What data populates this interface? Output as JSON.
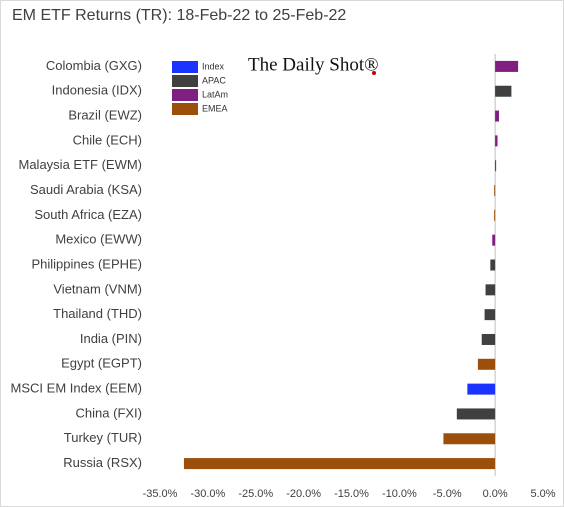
{
  "chart_data": {
    "type": "hbar",
    "title": "EM ETF Returns (TR): 18-Feb-22 to 25-Feb-22",
    "watermark": "The Daily Shot®",
    "categories": [
      "Colombia (GXG)",
      "Indonesia (IDX)",
      "Brazil (EWZ)",
      "Chile (ECH)",
      "Malaysia ETF (EWM)",
      "Saudi Arabia (KSA)",
      "South Africa (EZA)",
      "Mexico (EWW)",
      "Philippines (EPHE)",
      "Vietnam (VNM)",
      "Thailand (THD)",
      "India (PIN)",
      "Egypt (EGPT)",
      "MSCI EM Index (EEM)",
      "China (FXI)",
      "Turkey (TUR)",
      "Russia (RSX)"
    ],
    "series": [
      {
        "name": "Index",
        "color": "#1a33ff",
        "values": [
          null,
          null,
          null,
          null,
          null,
          null,
          null,
          null,
          null,
          null,
          null,
          null,
          null,
          -2.9,
          null,
          null,
          null
        ]
      },
      {
        "name": "APAC",
        "color": "#404040",
        "values": [
          null,
          1.7,
          null,
          null,
          0.1,
          null,
          null,
          null,
          -0.5,
          -1.0,
          -1.1,
          -1.4,
          null,
          null,
          -4.0,
          null,
          null
        ]
      },
      {
        "name": "LatAm",
        "color": "#7f1f7f",
        "values": [
          2.4,
          null,
          0.4,
          0.25,
          null,
          null,
          null,
          -0.3,
          null,
          null,
          null,
          null,
          null,
          null,
          null,
          null,
          null
        ]
      },
      {
        "name": "EMEA",
        "color": "#9c4f0b",
        "values": [
          null,
          null,
          null,
          null,
          null,
          -0.1,
          -0.1,
          null,
          null,
          null,
          null,
          null,
          -1.8,
          null,
          null,
          -5.4,
          -32.5
        ]
      }
    ],
    "xlim": [
      -35,
      5
    ],
    "xticks": [
      {
        "value": -35,
        "label": "-35.0%"
      },
      {
        "value": -30,
        "label": "-30.0%"
      },
      {
        "value": -25,
        "label": "-25.0%"
      },
      {
        "value": -20,
        "label": "-20.0%"
      },
      {
        "value": -15,
        "label": "-15.0%"
      },
      {
        "value": -10,
        "label": "-10.0%"
      },
      {
        "value": -5,
        "label": "-5.0%"
      },
      {
        "value": 0,
        "label": "0.0%"
      },
      {
        "value": 5,
        "label": "5.0%"
      }
    ]
  }
}
